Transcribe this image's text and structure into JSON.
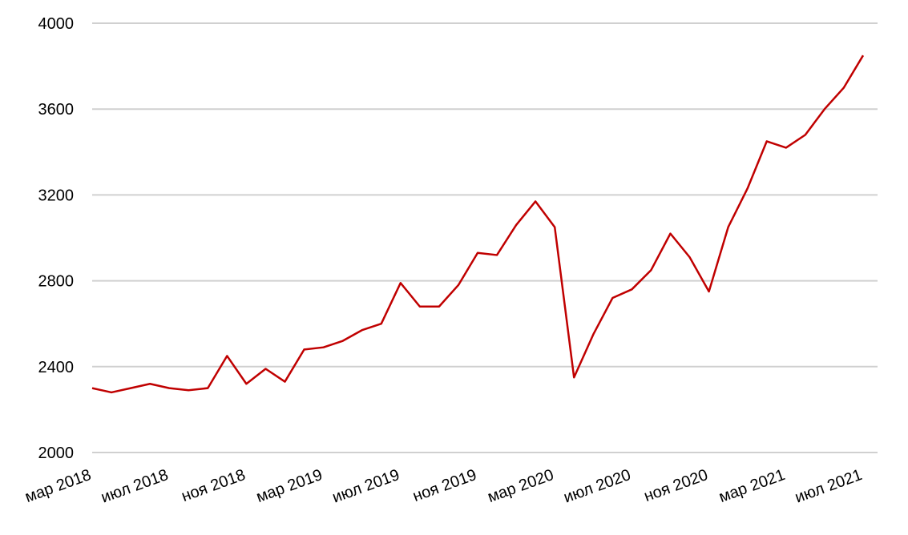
{
  "chart_data": {
    "type": "line",
    "x": [
      "2018-03",
      "2018-04",
      "2018-05",
      "2018-06",
      "2018-07",
      "2018-08",
      "2018-09",
      "2018-10",
      "2018-11",
      "2018-12",
      "2019-01",
      "2019-02",
      "2019-03",
      "2019-04",
      "2019-05",
      "2019-06",
      "2019-07",
      "2019-08",
      "2019-09",
      "2019-10",
      "2019-11",
      "2019-12",
      "2020-01",
      "2020-02",
      "2020-03",
      "2020-04",
      "2020-05",
      "2020-06",
      "2020-07",
      "2020-08",
      "2020-09",
      "2020-10",
      "2020-11",
      "2020-12",
      "2021-01",
      "2021-02",
      "2021-03",
      "2021-04",
      "2021-05",
      "2021-06",
      "2021-07"
    ],
    "series": [
      {
        "color": "#c00000",
        "values": [
          2300,
          2280,
          2300,
          2320,
          2300,
          2290,
          2300,
          2450,
          2320,
          2390,
          2330,
          2480,
          2490,
          2520,
          2570,
          2600,
          2790,
          2680,
          2680,
          2780,
          2930,
          2920,
          3060,
          3170,
          3050,
          2350,
          2550,
          2720,
          2760,
          2850,
          3020,
          2910,
          2750,
          3050,
          3230,
          3450,
          3420,
          3480,
          3600,
          3700,
          3850
        ]
      }
    ],
    "ylim": [
      2000,
      4000
    ],
    "yticks": [
      2000,
      2400,
      2800,
      3200,
      3600,
      4000
    ],
    "xticks": [
      {
        "value": "2018-03",
        "label": "мар 2018"
      },
      {
        "value": "2018-07",
        "label": "июл 2018"
      },
      {
        "value": "2018-11",
        "label": "ноя 2018"
      },
      {
        "value": "2019-03",
        "label": "мар 2019"
      },
      {
        "value": "2019-07",
        "label": "июл 2019"
      },
      {
        "value": "2019-11",
        "label": "ноя 2019"
      },
      {
        "value": "2020-03",
        "label": "мар 2020"
      },
      {
        "value": "2020-07",
        "label": "июл 2020"
      },
      {
        "value": "2020-11",
        "label": "ноя 2020"
      },
      {
        "value": "2021-03",
        "label": "мар 2021"
      },
      {
        "value": "2021-07",
        "label": "июл 2021"
      }
    ],
    "grid": true
  }
}
